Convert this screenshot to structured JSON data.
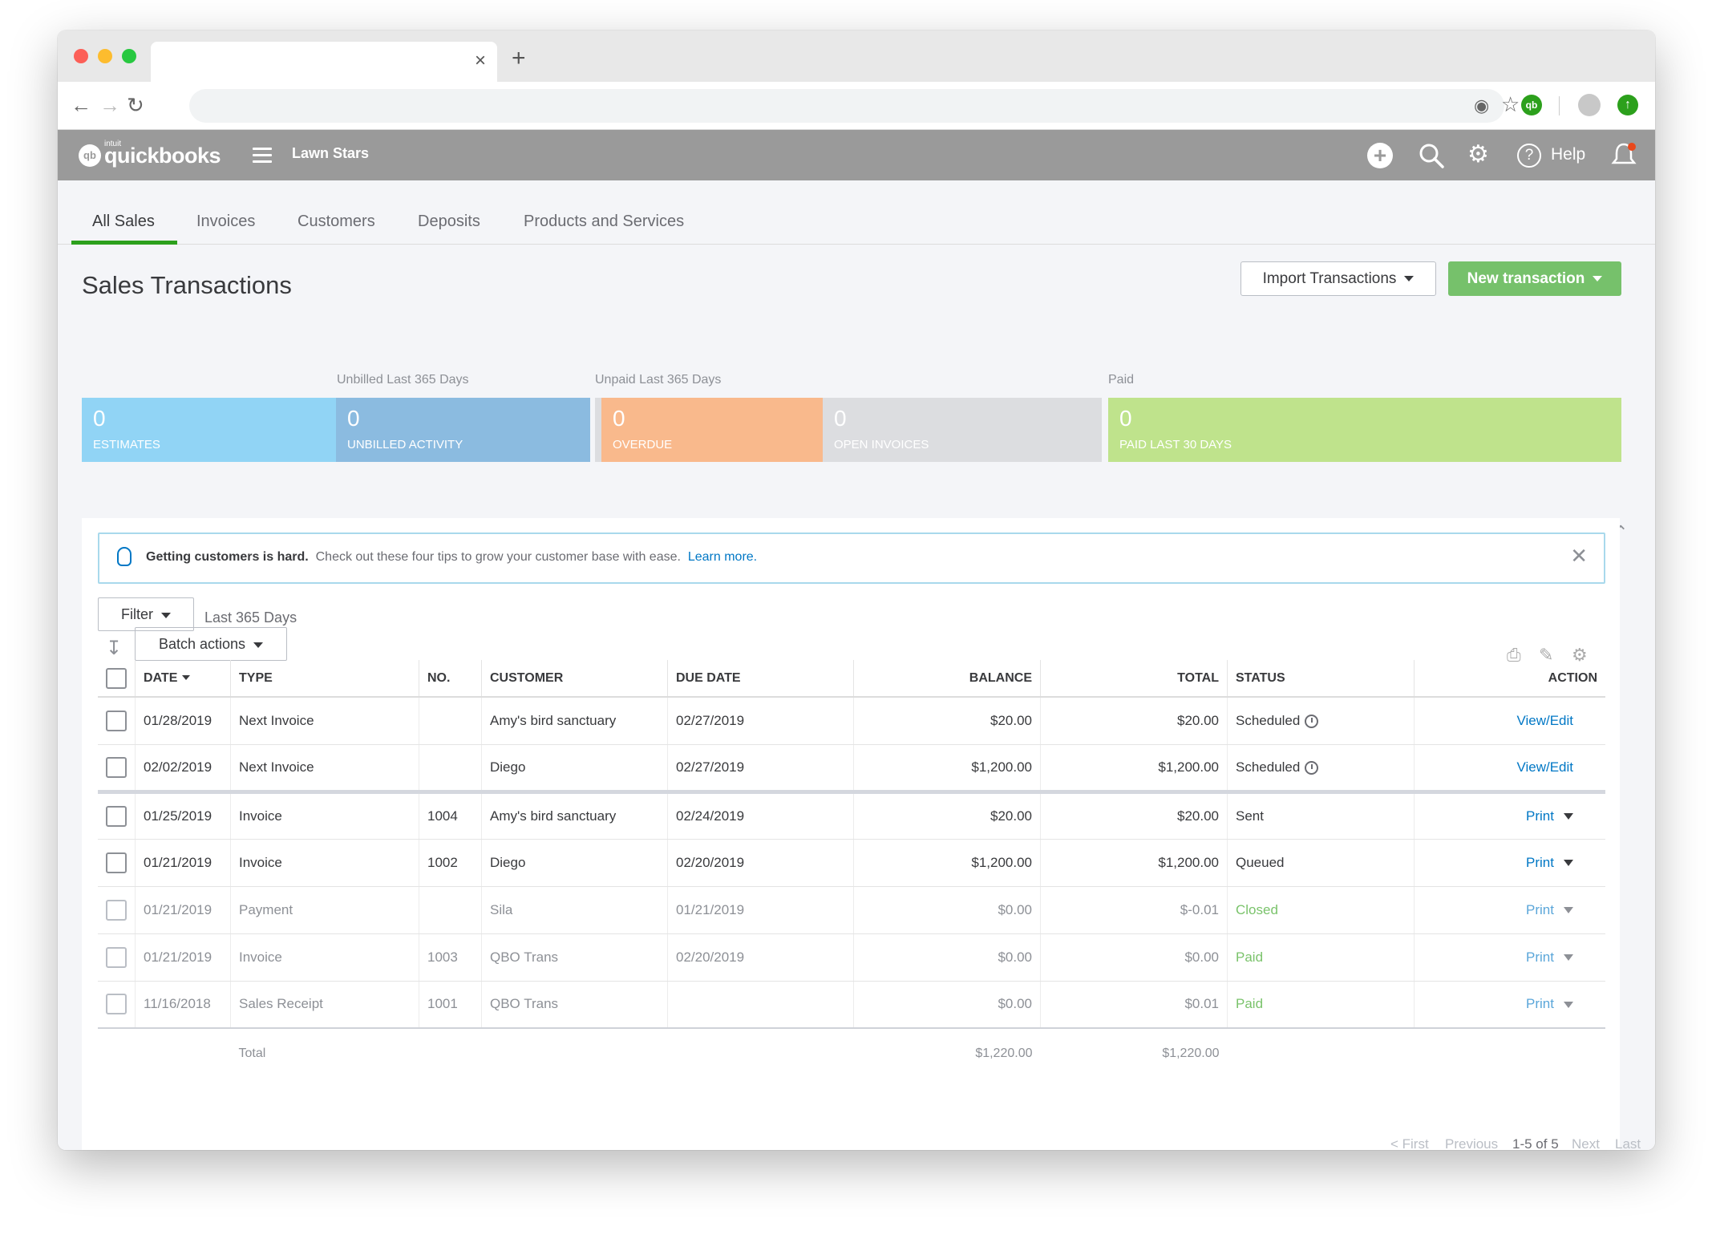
{
  "app": {
    "company": "Lawn Stars",
    "logo_intuit": "intuit",
    "logo_name": "quickbooks",
    "logo_mark": "qb",
    "help_label": "Help"
  },
  "browser": {
    "tab_close": "×",
    "new_tab": "+",
    "ext_label": "qb"
  },
  "subnav": {
    "tabs": [
      {
        "label": "All Sales",
        "active": true
      },
      {
        "label": "Invoices"
      },
      {
        "label": "Customers"
      },
      {
        "label": "Deposits"
      },
      {
        "label": "Products and Services"
      }
    ]
  },
  "page": {
    "title": "Sales Transactions",
    "import_label": "Import Transactions",
    "new_label": "New transaction"
  },
  "summary": {
    "groups": {
      "unbilled": "Unbilled Last 365 Days",
      "unpaid": "Unpaid Last 365 Days",
      "paid": "Paid"
    },
    "tiles": [
      {
        "value": "0",
        "label": "ESTIMATES",
        "color": "#91d4f5"
      },
      {
        "value": "0",
        "label": "UNBILLED ACTIVITY",
        "color": "#8bbbe0"
      },
      {
        "value": "0",
        "label": "OVERDUE",
        "color": "#f9b98c"
      },
      {
        "value": "0",
        "label": "OPEN INVOICES",
        "color": "#dcdde0"
      },
      {
        "value": "0",
        "label": "PAID LAST 30 DAYS",
        "color": "#bfe38c"
      }
    ]
  },
  "banner": {
    "bold": "Getting customers is hard.",
    "text": "Check out these four tips to grow your customer base with ease.",
    "link": "Learn more."
  },
  "filters": {
    "filter_label": "Filter",
    "range": "Last 365 Days",
    "batch_label": "Batch actions"
  },
  "table": {
    "headers": {
      "date": "DATE",
      "type": "TYPE",
      "no": "NO.",
      "customer": "CUSTOMER",
      "due": "DUE DATE",
      "balance": "BALANCE",
      "total": "TOTAL",
      "status": "STATUS",
      "action": "ACTION"
    },
    "rows": [
      {
        "date": "01/28/2019",
        "type": "Next Invoice",
        "no": "",
        "customer": "Amy's bird sanctuary",
        "due": "02/27/2019",
        "balance": "$20.00",
        "total": "$20.00",
        "status": "Scheduled",
        "action": "View/Edit"
      },
      {
        "date": "02/02/2019",
        "type": "Next Invoice",
        "no": "",
        "customer": "Diego",
        "due": "02/27/2019",
        "balance": "$1,200.00",
        "total": "$1,200.00",
        "status": "Scheduled",
        "action": "View/Edit"
      },
      {
        "date": "01/25/2019",
        "type": "Invoice",
        "no": "1004",
        "customer": "Amy's bird sanctuary",
        "due": "02/24/2019",
        "balance": "$20.00",
        "total": "$20.00",
        "status": "Sent",
        "action": "Print"
      },
      {
        "date": "01/21/2019",
        "type": "Invoice",
        "no": "1002",
        "customer": "Diego",
        "due": "02/20/2019",
        "balance": "$1,200.00",
        "total": "$1,200.00",
        "status": "Queued",
        "action": "Print"
      },
      {
        "date": "01/21/2019",
        "type": "Payment",
        "no": "",
        "customer": "Sila",
        "due": "01/21/2019",
        "balance": "$0.00",
        "total": "$-0.01",
        "status": "Closed",
        "action": "Print"
      },
      {
        "date": "01/21/2019",
        "type": "Invoice",
        "no": "1003",
        "customer": "QBO Trans",
        "due": "02/20/2019",
        "balance": "$0.00",
        "total": "$0.00",
        "status": "Paid",
        "action": "Print"
      },
      {
        "date": "11/16/2018",
        "type": "Sales Receipt",
        "no": "1001",
        "customer": "QBO Trans",
        "due": "",
        "balance": "$0.00",
        "total": "$0.01",
        "status": "Paid",
        "action": "Print"
      }
    ],
    "total_label": "Total",
    "total_balance": "$1,220.00",
    "total_total": "$1,220.00"
  },
  "pager": {
    "first": "< First",
    "previous": "Previous",
    "range": "1-5 of 5",
    "next": "Next",
    "last": "Last >"
  }
}
